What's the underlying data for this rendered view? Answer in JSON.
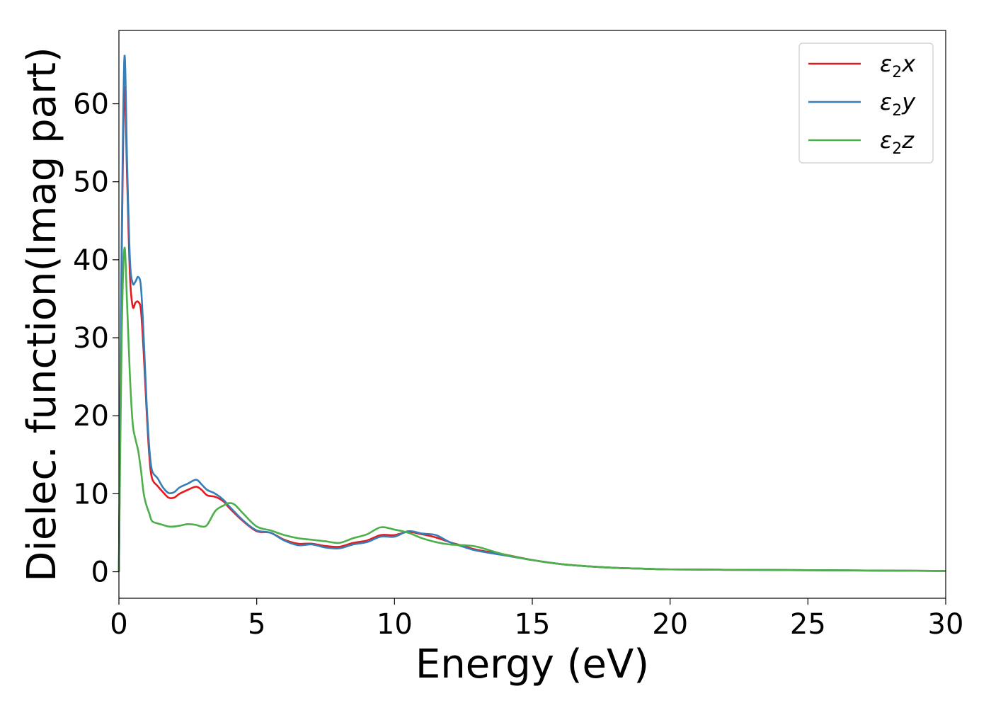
{
  "chart_data": {
    "type": "line",
    "xlabel": "Energy (eV)",
    "ylabel": "Dielec. function(Imag part)",
    "xlim": [
      0,
      30
    ],
    "ylim": [
      -3.4,
      69.4
    ],
    "xticks": [
      0,
      5,
      10,
      15,
      20,
      25,
      30
    ],
    "yticks": [
      0,
      10,
      20,
      30,
      40,
      50,
      60
    ],
    "grid": false,
    "legend_position": "top-right",
    "series": [
      {
        "name": "ε2x",
        "legend": {
          "base": "ε",
          "sub": "2",
          "suffix": "x"
        },
        "color": "#e41a1c",
        "x": [
          0,
          0.1,
          0.2,
          0.3,
          0.4,
          0.5,
          0.6,
          0.7,
          0.8,
          0.9,
          1.0,
          1.1,
          1.2,
          1.4,
          1.6,
          1.8,
          2.0,
          2.2,
          2.5,
          2.8,
          3.0,
          3.2,
          3.5,
          3.8,
          4.0,
          4.5,
          5.0,
          5.5,
          6.0,
          6.5,
          7.0,
          7.5,
          8.0,
          8.5,
          9.0,
          9.5,
          10.0,
          10.5,
          11.0,
          11.5,
          12.0,
          12.5,
          13.0,
          14.0,
          15.0,
          16.0,
          17.0,
          18.0,
          19.0,
          20.0,
          22.0,
          25.0,
          27.5,
          30.0
        ],
        "y": [
          0,
          40,
          62,
          50,
          38,
          34,
          34.5,
          34.6,
          33.5,
          28,
          21,
          15,
          12,
          11,
          10.2,
          9.5,
          9.5,
          10,
          10.5,
          10.9,
          10.5,
          9.8,
          9.6,
          9.0,
          8.2,
          6.5,
          5.2,
          5.0,
          4.1,
          3.6,
          3.6,
          3.3,
          3.2,
          3.7,
          4.0,
          4.7,
          4.7,
          5.1,
          4.8,
          4.4,
          3.8,
          3.3,
          2.8,
          2.2,
          1.5,
          1.0,
          0.7,
          0.5,
          0.4,
          0.3,
          0.25,
          0.2,
          0.15,
          0.1
        ]
      },
      {
        "name": "ε2y",
        "legend": {
          "base": "ε",
          "sub": "2",
          "suffix": "y"
        },
        "color": "#377eb8",
        "x": [
          0,
          0.1,
          0.2,
          0.3,
          0.4,
          0.5,
          0.6,
          0.7,
          0.8,
          0.9,
          1.0,
          1.1,
          1.2,
          1.4,
          1.6,
          1.8,
          2.0,
          2.2,
          2.5,
          2.8,
          3.0,
          3.2,
          3.5,
          3.8,
          4.0,
          4.5,
          5.0,
          5.5,
          6.0,
          6.5,
          7.0,
          7.5,
          8.0,
          8.5,
          9.0,
          9.5,
          10.0,
          10.5,
          11.0,
          11.5,
          12.0,
          12.5,
          13.0,
          14.0,
          15.0,
          16.0,
          17.0,
          18.0,
          19.0,
          20.0,
          22.0,
          25.0,
          27.5,
          30.0
        ],
        "y": [
          0,
          42,
          66,
          52,
          40,
          37,
          37.2,
          37.8,
          36.5,
          30,
          22,
          16,
          13,
          12,
          10.8,
          10.1,
          10.2,
          10.8,
          11.3,
          11.8,
          11.2,
          10.5,
          10.0,
          9.2,
          8.4,
          6.6,
          5.3,
          5.0,
          4.0,
          3.4,
          3.5,
          3.1,
          3.0,
          3.5,
          3.8,
          4.5,
          4.5,
          5.2,
          4.9,
          4.7,
          3.8,
          3.2,
          2.7,
          2.1,
          1.5,
          1.0,
          0.7,
          0.5,
          0.4,
          0.3,
          0.25,
          0.2,
          0.15,
          0.1
        ]
      },
      {
        "name": "ε2z",
        "legend": {
          "base": "ε",
          "sub": "2",
          "suffix": "z"
        },
        "color": "#4daf4a",
        "x": [
          0,
          0.1,
          0.2,
          0.3,
          0.4,
          0.5,
          0.6,
          0.7,
          0.8,
          0.9,
          1.0,
          1.1,
          1.2,
          1.4,
          1.6,
          1.8,
          2.0,
          2.2,
          2.5,
          2.8,
          3.0,
          3.2,
          3.5,
          3.8,
          4.0,
          4.2,
          4.5,
          5.0,
          5.5,
          6.0,
          6.5,
          7.0,
          7.5,
          8.0,
          8.5,
          9.0,
          9.5,
          10.0,
          10.5,
          11.0,
          11.5,
          12.0,
          12.5,
          13.0,
          14.0,
          15.0,
          16.0,
          17.0,
          18.0,
          19.0,
          20.0,
          22.0,
          25.0,
          27.5,
          30.0
        ],
        "y": [
          0,
          30,
          41.5,
          34,
          25,
          19,
          17,
          15.5,
          13,
          10,
          8.5,
          7.5,
          6.5,
          6.2,
          6.0,
          5.8,
          5.8,
          5.9,
          6.1,
          6.0,
          5.8,
          6.0,
          7.8,
          8.5,
          8.8,
          8.6,
          7.5,
          5.8,
          5.3,
          4.7,
          4.3,
          4.1,
          3.9,
          3.7,
          4.3,
          4.8,
          5.7,
          5.4,
          5.0,
          4.3,
          3.8,
          3.5,
          3.4,
          3.2,
          2.2,
          1.5,
          1.0,
          0.7,
          0.5,
          0.4,
          0.3,
          0.25,
          0.2,
          0.15,
          0.1
        ]
      }
    ]
  }
}
